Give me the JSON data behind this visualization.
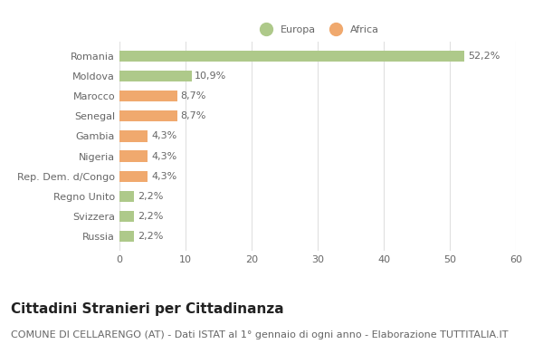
{
  "categories": [
    "Romania",
    "Moldova",
    "Marocco",
    "Senegal",
    "Gambia",
    "Nigeria",
    "Rep. Dem. d/Congo",
    "Regno Unito",
    "Svizzera",
    "Russia"
  ],
  "values": [
    52.2,
    10.9,
    8.7,
    8.7,
    4.3,
    4.3,
    4.3,
    2.2,
    2.2,
    2.2
  ],
  "labels": [
    "52,2%",
    "10,9%",
    "8,7%",
    "8,7%",
    "4,3%",
    "4,3%",
    "4,3%",
    "2,2%",
    "2,2%",
    "2,2%"
  ],
  "colors": [
    "#aec98a",
    "#aec98a",
    "#f0a96e",
    "#f0a96e",
    "#f0a96e",
    "#f0a96e",
    "#f0a96e",
    "#aec98a",
    "#aec98a",
    "#aec98a"
  ],
  "legend_europa_color": "#aec98a",
  "legend_africa_color": "#f0a96e",
  "background_color": "#ffffff",
  "grid_color": "#e0e0e0",
  "xlim": [
    0,
    60
  ],
  "xticks": [
    0,
    10,
    20,
    30,
    40,
    50,
    60
  ],
  "title": "Cittadini Stranieri per Cittadinanza",
  "subtitle": "COMUNE DI CELLARENGO (AT) - Dati ISTAT al 1° gennaio di ogni anno - Elaborazione TUTTITALIA.IT",
  "title_fontsize": 11,
  "subtitle_fontsize": 8,
  "label_fontsize": 8,
  "tick_fontsize": 8,
  "bar_height": 0.55
}
